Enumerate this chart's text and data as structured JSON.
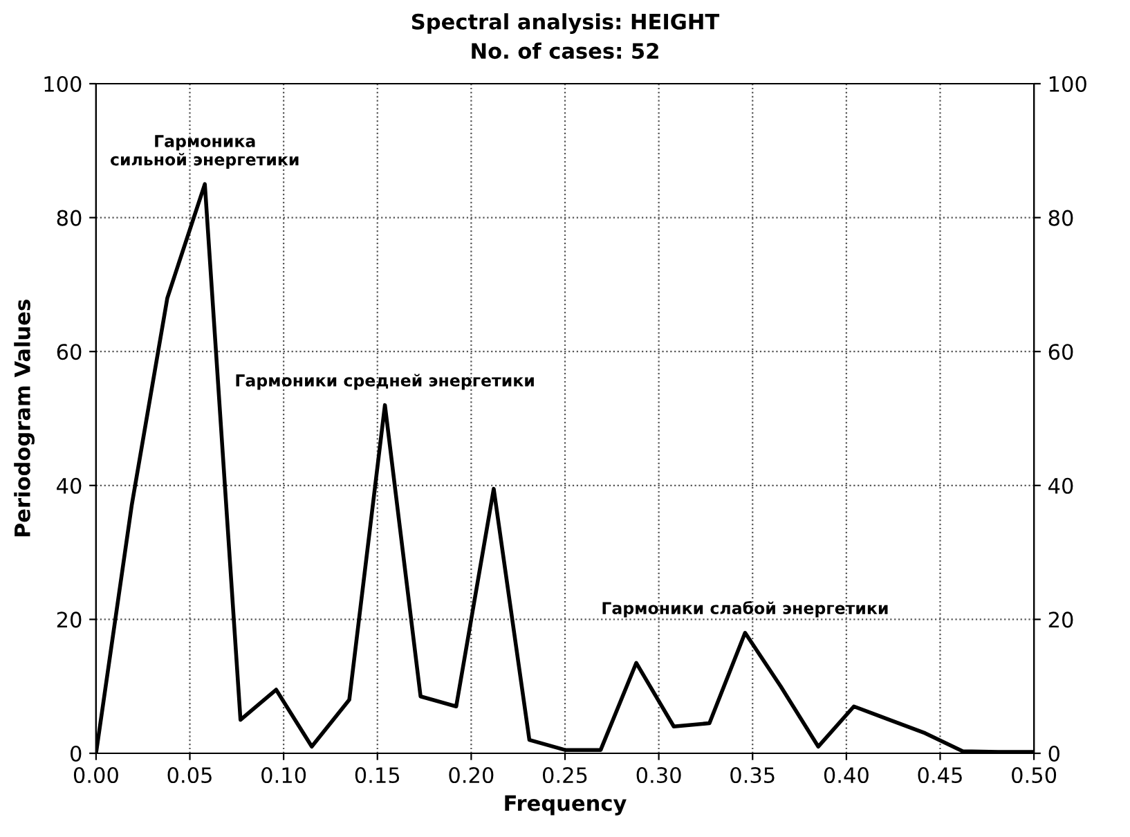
{
  "chart_data": {
    "type": "line",
    "title": "Spectral analysis: HEIGHT",
    "subtitle": "No. of cases: 52",
    "xlabel": "Frequency",
    "ylabel": "Periodogram Values",
    "x": [
      0,
      0.019,
      0.038,
      0.058,
      0.077,
      0.096,
      0.115,
      0.135,
      0.154,
      0.173,
      0.192,
      0.212,
      0.231,
      0.25,
      0.269,
      0.288,
      0.308,
      0.327,
      0.346,
      0.365,
      0.385,
      0.404,
      0.423,
      0.442,
      0.462,
      0.481,
      0.5
    ],
    "series": [
      {
        "color": "#000000",
        "values": [
          0,
          37,
          68,
          85,
          5,
          9.5,
          1,
          8,
          52,
          8.5,
          7,
          39.5,
          2,
          0.5,
          0.5,
          13.5,
          4,
          4.5,
          18,
          10,
          1,
          7,
          5,
          3,
          0.3,
          0.2,
          0.2
        ]
      }
    ],
    "xlim": [
      0,
      0.5
    ],
    "xticks": [
      {
        "value": 0,
        "label": "0.00"
      },
      {
        "value": 0.05,
        "label": "0.05"
      },
      {
        "value": 0.1,
        "label": "0.10"
      },
      {
        "value": 0.15,
        "label": "0.15"
      },
      {
        "value": 0.2,
        "label": "0.20"
      },
      {
        "value": 0.25,
        "label": "0.25"
      },
      {
        "value": 0.3,
        "label": "0.30"
      },
      {
        "value": 0.35,
        "label": "0.35"
      },
      {
        "value": 0.4,
        "label": "0.40"
      },
      {
        "value": 0.45,
        "label": "0.45"
      },
      {
        "value": 0.5,
        "label": "0.50"
      }
    ],
    "ylim": [
      0,
      100
    ],
    "yticks": [
      0,
      20,
      40,
      60,
      80,
      100
    ],
    "y2lim": [
      0,
      100
    ],
    "y2ticks": [
      0,
      20,
      40,
      60,
      80,
      100
    ],
    "grid": true,
    "marker": "none",
    "line_style": "solid",
    "annotations": [
      {
        "text": "Гармоника\nсильной энергетики",
        "x": 0.058,
        "y": 85
      },
      {
        "text": "Гармоники средней энергетики",
        "x": 0.154,
        "y": 52
      },
      {
        "text": "Гармоники слабой энергетики",
        "x": 0.346,
        "y": 18
      }
    ]
  }
}
